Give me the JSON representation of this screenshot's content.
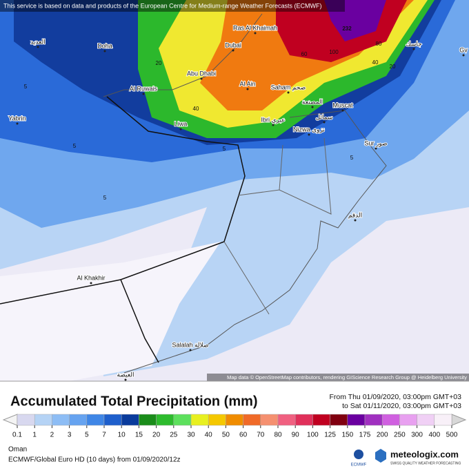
{
  "banner": "This service is based on data and products of the European Centre for Medium-range Weather Forecasts (ECMWF)",
  "map": {
    "labels": [
      "Doha",
      "العديد",
      "Ras Al Khaimah",
      "Dubai",
      "Abu Dhabi",
      "Al Ruwais",
      "Al Ain",
      "Saham صحم",
      "المصنعة",
      "Muscat",
      "Ibri عبري",
      "سمائل",
      "Nizwa نزوى",
      "Sur صور",
      "Liwa",
      "Yabrin",
      "Al Khakhir",
      "Salalah صلالة",
      "الغيضة",
      "جاسك",
      "الدقم",
      "Gv"
    ],
    "contour_labels": [
      "232",
      "5",
      "5",
      "5",
      "5",
      "5",
      "20",
      "20",
      "40",
      "40",
      "60",
      "100",
      "80"
    ],
    "attribution": "Map data © OpenStreetMap contributors, rendering GIScience Research Group @ Heidelberg University"
  },
  "legend": {
    "title": "Accumulated Total Precipitation (mm)",
    "period_from": "From Thu 01/09/2020, 03:00pm GMT+03",
    "period_to": "to Sat 01/11/2020, 03:00pm GMT+03",
    "ticks": [
      0.1,
      1,
      2,
      3,
      5,
      7,
      10,
      15,
      20,
      25,
      30,
      40,
      50,
      60,
      70,
      80,
      90,
      100,
      125,
      150,
      175,
      200,
      250,
      300,
      400,
      500
    ],
    "colors": [
      "#d8d8ef",
      "#b5d3f5",
      "#8dbdf5",
      "#66a3f0",
      "#3f86e6",
      "#1e5fcc",
      "#0a3b9c",
      "#1a8c1a",
      "#2dbb2d",
      "#5de05d",
      "#e8f020",
      "#f5c800",
      "#f08c00",
      "#f06a28",
      "#f59070",
      "#f06080",
      "#e0305a",
      "#c00020",
      "#800010",
      "#6a00a0",
      "#a030c0",
      "#d060e0",
      "#e8a0f0",
      "#f0d0f5",
      "#f8f0f8"
    ]
  },
  "footer": {
    "region": "Oman",
    "model": "ECMWF/Global Euro HD (10 days) from 01/09/2020/12z",
    "ecmwf": "ECMWF",
    "brand": "meteologix.com",
    "tagline": "SWISS QUALITY WEATHER FORECASTING"
  }
}
